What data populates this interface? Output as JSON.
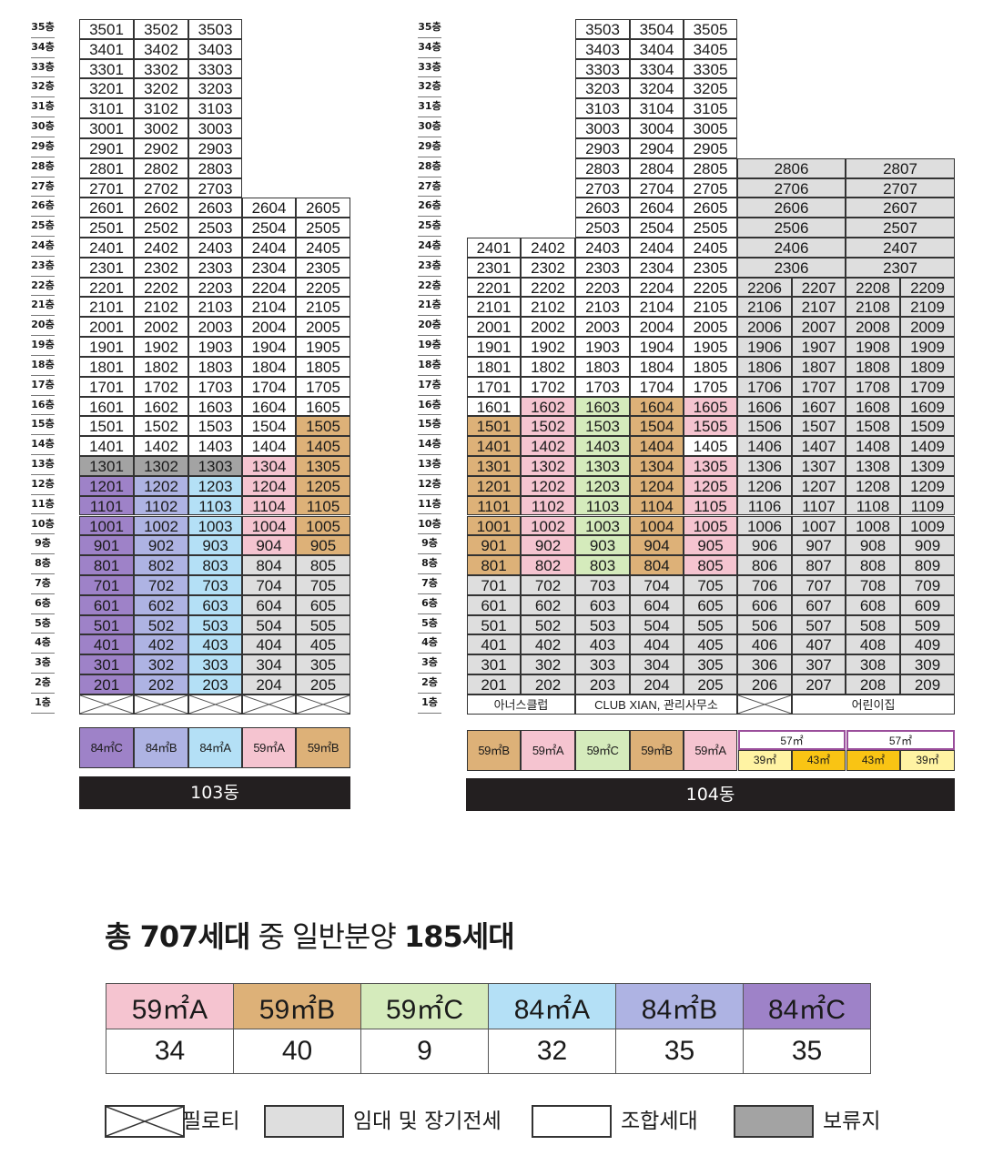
{
  "colors": {
    "59A": "#f5c4d0",
    "59B": "#ddb178",
    "59C": "#d5ebbc",
    "84A": "#b4e0f6",
    "84B": "#aeb3e3",
    "84C": "#9e82c8",
    "rental": "#dedede",
    "union": "#ffffff",
    "reserved": "#a3a3a3",
    "57yellow": "#fff3a3",
    "57orange": "#f9c414",
    "57border": "#9a4e9b"
  },
  "floor_labels": [
    "35층",
    "34층",
    "33층",
    "32층",
    "31층",
    "30층",
    "29층",
    "28층",
    "27층",
    "26층",
    "25층",
    "24층",
    "23층",
    "22층",
    "21층",
    "20층",
    "19층",
    "18층",
    "17층",
    "16층",
    "15층",
    "14층",
    "13층",
    "12층",
    "11층",
    "10층",
    "9층",
    "8층",
    "7층",
    "6층",
    "5층",
    "4층",
    "3층",
    "2층",
    "1층"
  ],
  "building103": {
    "name": "103동",
    "type_labels": [
      "84㎡C",
      "84㎡B",
      "84㎡A",
      "59㎡A",
      "59㎡B"
    ],
    "type_label_colors": [
      "84C",
      "84B",
      "84A",
      "59A",
      "59B"
    ]
  },
  "building104": {
    "name": "104동",
    "type_labels": [
      "59㎡B",
      "59㎡A",
      "59㎡C",
      "59㎡B",
      "59㎡A"
    ],
    "type_label_colors": [
      "59B",
      "59A",
      "59C",
      "59B",
      "59A"
    ],
    "lbl57": [
      "57㎡",
      "57㎡"
    ],
    "lbl57_sub": [
      "39㎡",
      "43㎡",
      "43㎡",
      "39㎡"
    ],
    "ground": {
      "a": "아너스클럽",
      "b": "CLUB XIAN, 관리사무소",
      "c": "어린이집"
    }
  },
  "summary": {
    "title_a": "총 707세대",
    "title_b": " 중 일반분양 ",
    "title_c": "185세대",
    "types": [
      "59㎡A",
      "59㎡B",
      "59㎡C",
      "84㎡A",
      "84㎡B",
      "84㎡C"
    ],
    "type_colors": [
      "#f5c4d0",
      "#ddb178",
      "#d5ebbc",
      "#b4e0f6",
      "#aeb3e3",
      "#9e82c8"
    ],
    "counts": [
      "34",
      "40",
      "9",
      "32",
      "35",
      "35"
    ]
  },
  "legend": {
    "pilotis": "필로티",
    "rental": "임대 및 장기전세",
    "union": "조합세대",
    "reserved": "보류지"
  }
}
